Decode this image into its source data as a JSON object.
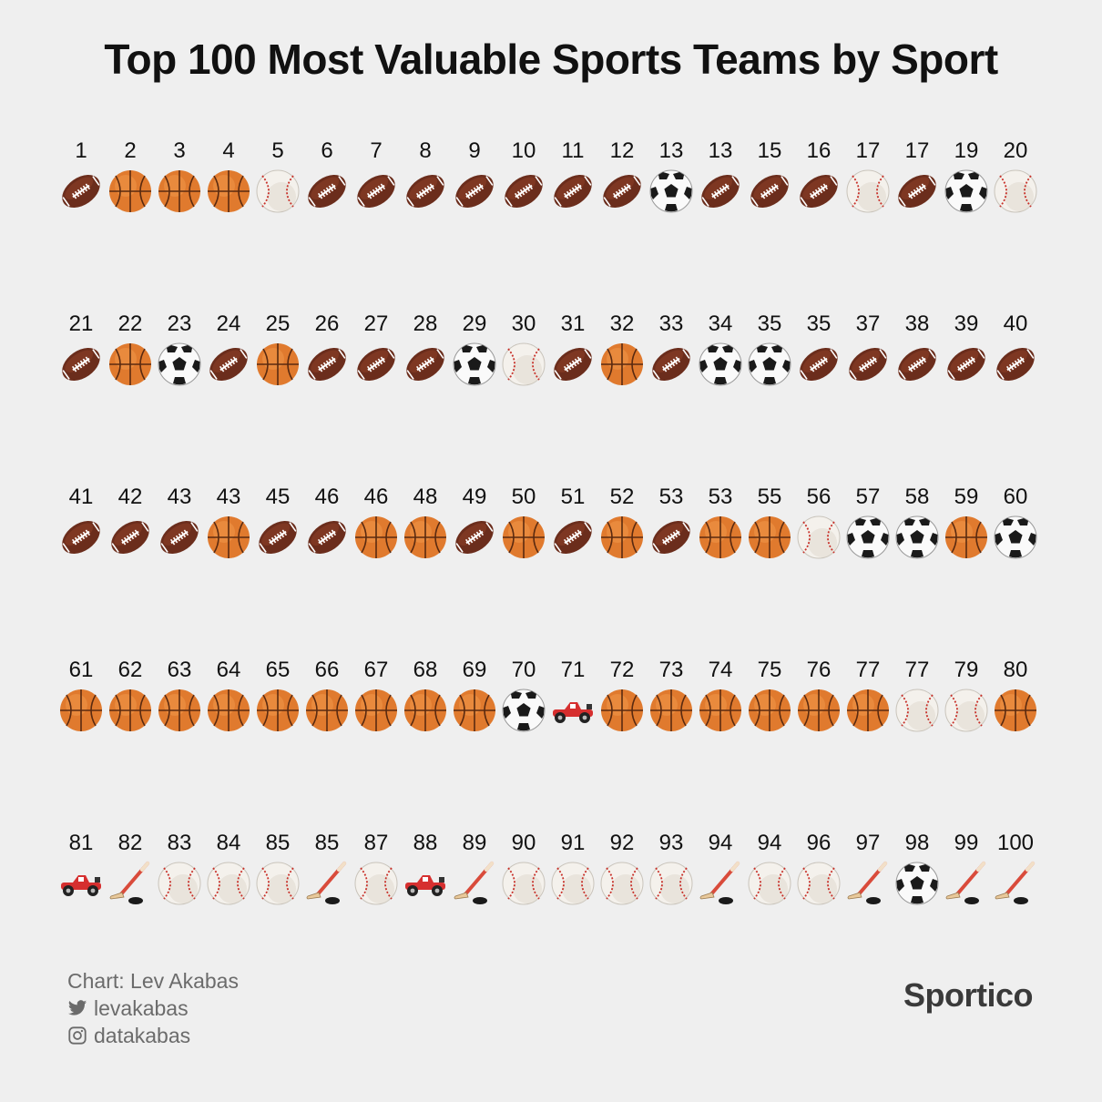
{
  "header": {
    "title": "Top 100 Most Valuable Sports Teams by Sport"
  },
  "chart_data": {
    "type": "table",
    "title": "Top 100 Most Valuable Sports Teams by Sport",
    "categories_legend": {
      "F": "football-icon",
      "B": "basketball-icon",
      "S": "soccer-ball-icon",
      "M": "baseball-icon",
      "R": "race-car-icon",
      "H": "hockey-stick-icon"
    },
    "rows": [
      {
        "ranks": [
          "1",
          "2",
          "3",
          "4",
          "5",
          "6",
          "7",
          "8",
          "9",
          "10",
          "11",
          "12",
          "13",
          "13",
          "15",
          "16",
          "17",
          "17",
          "19",
          "20"
        ],
        "sports": [
          "F",
          "B",
          "B",
          "B",
          "M",
          "F",
          "F",
          "F",
          "F",
          "F",
          "F",
          "F",
          "S",
          "F",
          "F",
          "F",
          "M",
          "F",
          "S",
          "M"
        ]
      },
      {
        "ranks": [
          "21",
          "22",
          "23",
          "24",
          "25",
          "26",
          "27",
          "28",
          "29",
          "30",
          "31",
          "32",
          "33",
          "34",
          "35",
          "35",
          "37",
          "38",
          "39",
          "40"
        ],
        "sports": [
          "F",
          "B",
          "S",
          "F",
          "B",
          "F",
          "F",
          "F",
          "S",
          "M",
          "F",
          "B",
          "F",
          "S",
          "S",
          "F",
          "F",
          "F",
          "F",
          "F"
        ]
      },
      {
        "ranks": [
          "41",
          "42",
          "43",
          "43",
          "45",
          "46",
          "46",
          "48",
          "49",
          "50",
          "51",
          "52",
          "53",
          "53",
          "55",
          "56",
          "57",
          "58",
          "59",
          "60"
        ],
        "sports": [
          "F",
          "F",
          "F",
          "B",
          "F",
          "F",
          "B",
          "B",
          "F",
          "B",
          "F",
          "B",
          "F",
          "B",
          "B",
          "M",
          "S",
          "S",
          "B",
          "S"
        ]
      },
      {
        "ranks": [
          "61",
          "62",
          "63",
          "64",
          "65",
          "66",
          "67",
          "68",
          "69",
          "70",
          "71",
          "72",
          "73",
          "74",
          "75",
          "76",
          "77",
          "77",
          "79",
          "80"
        ],
        "sports": [
          "B",
          "B",
          "B",
          "B",
          "B",
          "B",
          "B",
          "B",
          "B",
          "S",
          "R",
          "B",
          "B",
          "B",
          "B",
          "B",
          "B",
          "M",
          "M",
          "B"
        ]
      },
      {
        "ranks": [
          "81",
          "82",
          "83",
          "84",
          "85",
          "85",
          "87",
          "88",
          "89",
          "90",
          "91",
          "92",
          "93",
          "94",
          "94",
          "96",
          "97",
          "98",
          "99",
          "100"
        ],
        "sports": [
          "R",
          "H",
          "M",
          "M",
          "M",
          "H",
          "M",
          "R",
          "H",
          "M",
          "M",
          "M",
          "M",
          "H",
          "M",
          "M",
          "H",
          "S",
          "H",
          "H"
        ]
      }
    ]
  },
  "footer": {
    "credit": "Chart: Lev Akabas",
    "twitter": "levakabas",
    "instagram": "datakabas",
    "twitter_icon": "twitter-icon",
    "instagram_icon": "instagram-icon"
  },
  "brand": {
    "name": "Sportico"
  },
  "colors": {
    "background": "#efefef",
    "football": "#6b2d1c",
    "basketball": "#e07a2e",
    "baseball_stitch": "#c8312a",
    "car": "#d62f2f",
    "stick": "#d94b3b"
  }
}
